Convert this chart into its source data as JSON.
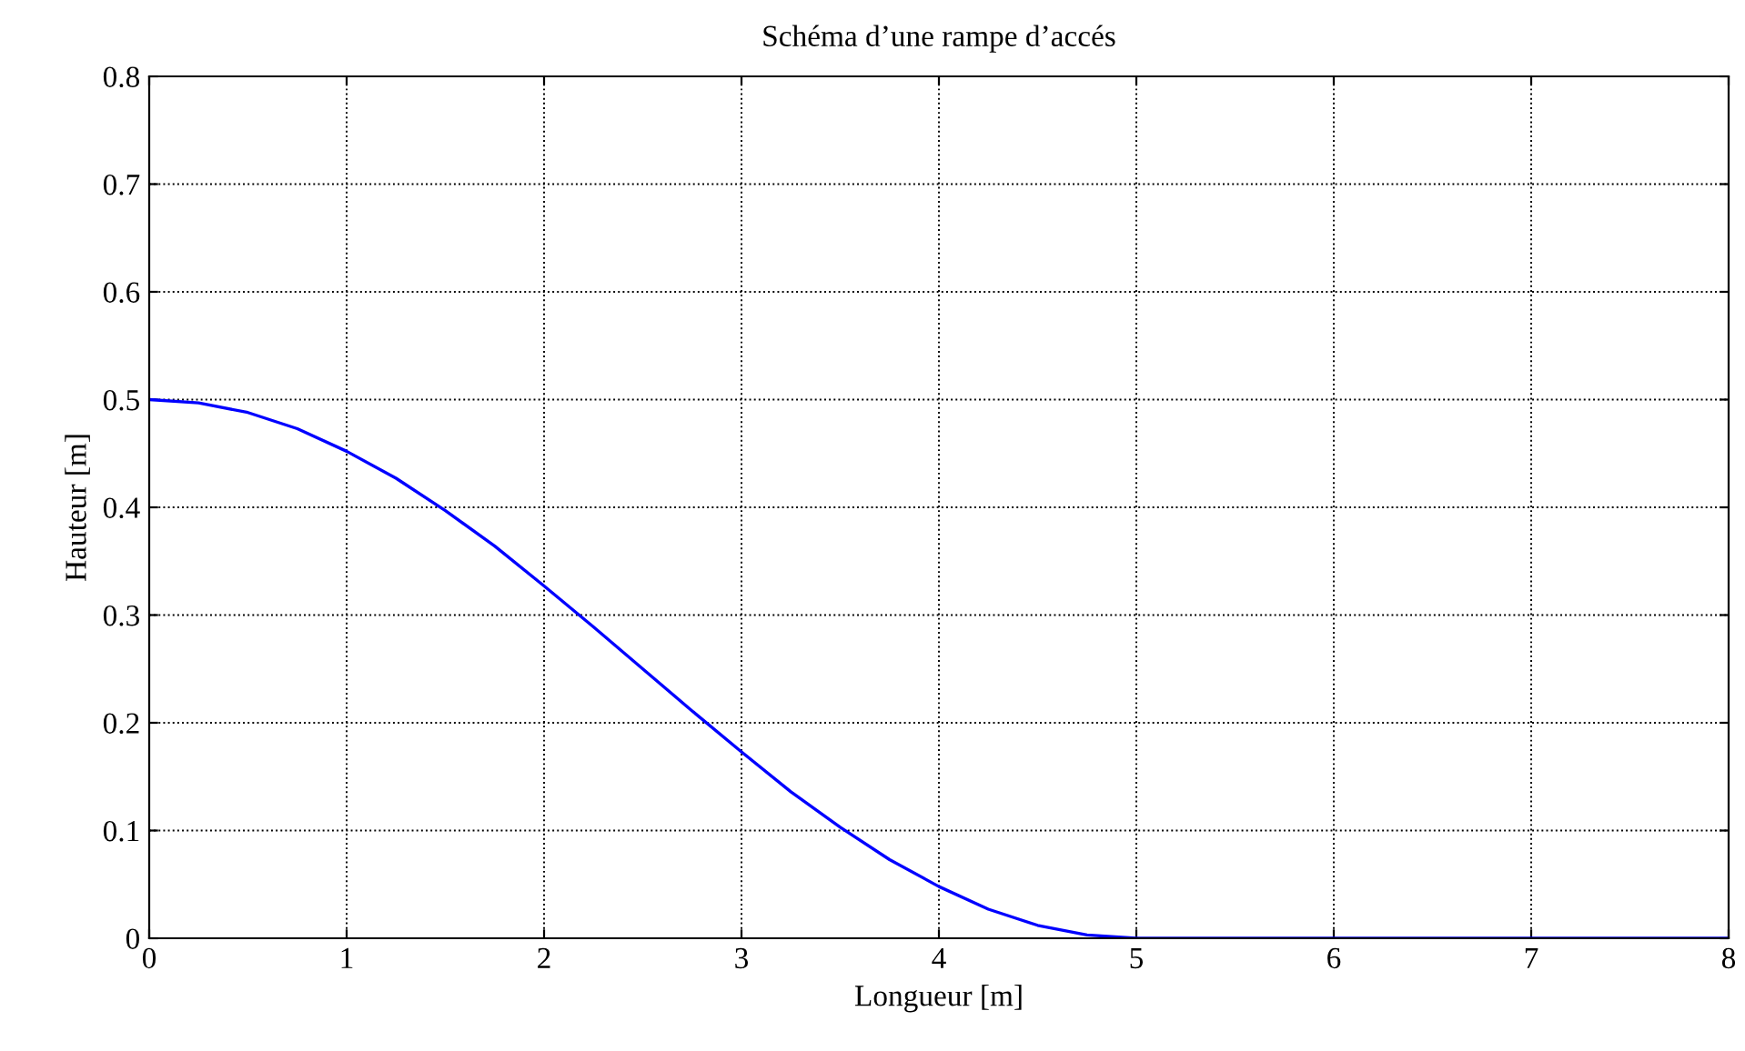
{
  "chart_data": {
    "type": "line",
    "title": "Schéma d’une rampe d’accés",
    "xlabel": "Longueur [m]",
    "ylabel": "Hauteur [m]",
    "series": [
      {
        "color": "#0000ff",
        "x": [
          0,
          0.25,
          0.5,
          0.75,
          1,
          1.25,
          1.5,
          1.75,
          2,
          2.25,
          2.5,
          2.75,
          3,
          3.25,
          3.5,
          3.75,
          4,
          4.25,
          4.5,
          4.75,
          5,
          6,
          7,
          8
        ],
        "values": [
          0.5,
          0.497,
          0.488,
          0.473,
          0.452,
          0.427,
          0.397,
          0.364,
          0.327,
          0.289,
          0.25,
          0.211,
          0.173,
          0.136,
          0.103,
          0.073,
          0.048,
          0.027,
          0.012,
          0.003,
          0,
          0,
          0,
          0
        ]
      }
    ],
    "xlim": [
      0,
      8
    ],
    "ylim": [
      0,
      0.8
    ],
    "xticks": [
      0,
      1,
      2,
      3,
      4,
      5,
      6,
      7,
      8
    ],
    "yticks": [
      0,
      0.1,
      0.2,
      0.3,
      0.4,
      0.5,
      0.6,
      0.7,
      0.8
    ],
    "grid": true,
    "line_style": "solid",
    "marker": "none",
    "legend": false
  }
}
